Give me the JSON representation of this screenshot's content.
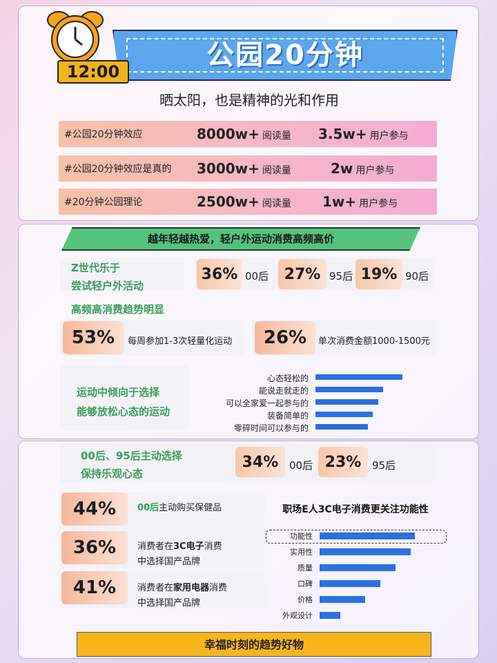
{
  "header": {
    "time": "12:00",
    "title": "公园20分钟",
    "subtitle": "晒太阳，也是精神的光和作用"
  },
  "stats": [
    {
      "tag": "#公园20分钟效应",
      "reads_value": "8000w+",
      "reads_label": "阅读量",
      "users_value": "3.5w+",
      "users_label": "用户参与"
    },
    {
      "tag": "#公园20分钟效应是真的",
      "reads_value": "3000w+",
      "reads_label": "阅读量",
      "users_value": "2w",
      "users_label": "用户参与"
    },
    {
      "tag": "#20分钟公园理论",
      "reads_value": "2500w+",
      "reads_label": "阅读量",
      "users_value": "1w+",
      "users_label": "用户参与"
    }
  ],
  "outdoor": {
    "banner": "越年轻越热爱，轻户外运动消费高频高价",
    "gen_label_1": "Z世代乐于",
    "gen_label_2": "尝试轻户外活动",
    "generations": [
      {
        "pct": "36%",
        "label": "00后"
      },
      {
        "pct": "27%",
        "label": "95后"
      },
      {
        "pct": "19%",
        "label": "90后"
      }
    ],
    "freq_head": "高频高消费趋势明显",
    "freq": [
      {
        "pct": "53%",
        "desc": "每周参加1-3次轻量化运动"
      },
      {
        "pct": "26%",
        "desc": "单次消费金额1000-1500元"
      }
    ],
    "relax_line1": "运动中倾向于选择",
    "relax_line2": "能够放松心态的运动",
    "relax_chart": {
      "type": "bar",
      "categories": [
        "心态轻松的",
        "能说走就走的",
        "可以全家爱一起参与的",
        "装备简单的",
        "零碎时间可以参与的"
      ],
      "values": [
        100,
        78,
        72,
        66,
        60
      ]
    }
  },
  "optimism": {
    "line1": "00后、95后主动选择",
    "line2": "保持乐观心态",
    "generations": [
      {
        "pct": "34%",
        "label": "00后"
      },
      {
        "pct": "23%",
        "label": "95后"
      }
    ],
    "cards": [
      {
        "pct": "44%",
        "pre": "",
        "green": "00后",
        "bold": "",
        "post": "主动购买保健品",
        "line2": ""
      },
      {
        "pct": "36%",
        "pre": "消费者在",
        "green": "",
        "bold": "3C电子",
        "post": "消费",
        "line2": "中选择国产品牌"
      },
      {
        "pct": "41%",
        "pre": "消费者在",
        "green": "",
        "bold": "家用电器",
        "post": "消费",
        "line2": "中选择国产品牌"
      }
    ],
    "chart_title": "职场E人3C电子消费更关注功能性",
    "chart_data": {
      "type": "bar",
      "categories": [
        "功能性",
        "实用性",
        "质量",
        "口碑",
        "价格",
        "外观设计"
      ],
      "values": [
        100,
        96,
        80,
        64,
        48,
        22
      ]
    },
    "footer": "幸福时刻的趋势好物"
  },
  "colors": {
    "accent_blue": "#5aa7ee",
    "bar_blue": "#2d6fe0",
    "green": "#54c47b",
    "yellow": "#f8b51e"
  }
}
